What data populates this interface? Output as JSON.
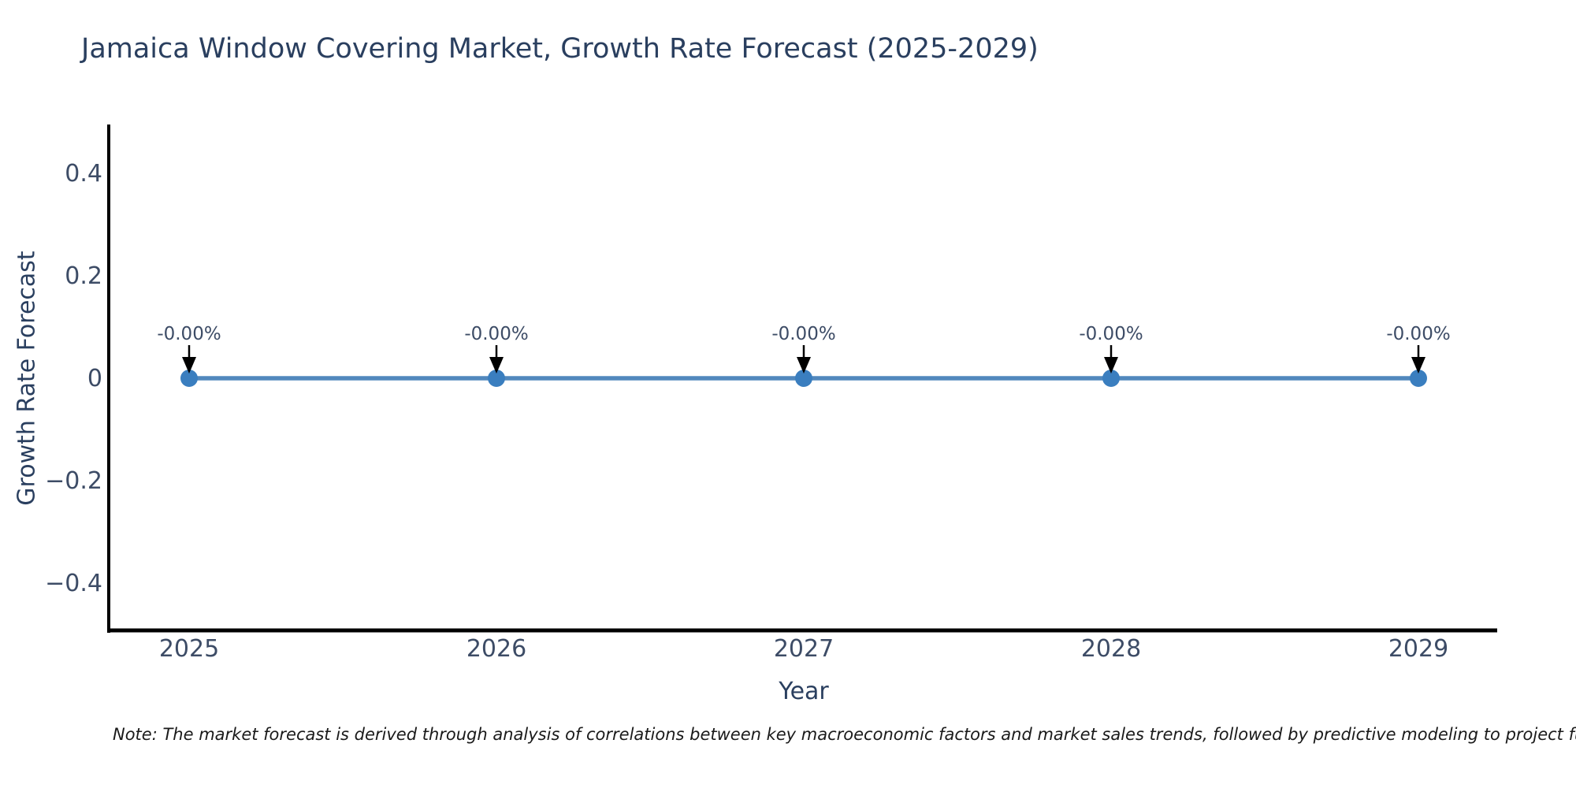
{
  "chart_data": {
    "type": "line",
    "title": "Jamaica Window Covering Market, Growth Rate Forecast (2025-2029)",
    "xlabel": "Year",
    "ylabel": "Growth Rate Forecast",
    "categories": [
      "2025",
      "2026",
      "2027",
      "2028",
      "2029"
    ],
    "values": [
      0,
      0,
      0,
      0,
      0
    ],
    "point_labels": [
      "-0.00%",
      "-0.00%",
      "-0.00%",
      "-0.00%",
      "-0.00%"
    ],
    "y_tick_labels": [
      "0.4",
      "0.2",
      "0",
      "−0.2",
      "−0.4"
    ],
    "y_tick_values": [
      0.4,
      0.2,
      0,
      -0.2,
      -0.4
    ],
    "ylim": [
      -0.5,
      0.52
    ],
    "grid": false,
    "legend": "none",
    "note": "Note: The market forecast is derived through analysis of correlations between key macroeconomic factors and market sales trends, followed by predictive modeling to project future sal",
    "colors": {
      "title_text": "#2a3f5f",
      "tick_text": "#3d4c66",
      "axis_line": "#000000",
      "series_line": "#5188bd",
      "marker_fill": "#3a7ebf",
      "arrow": "#000000",
      "note_text": "#1a1a1a"
    }
  }
}
